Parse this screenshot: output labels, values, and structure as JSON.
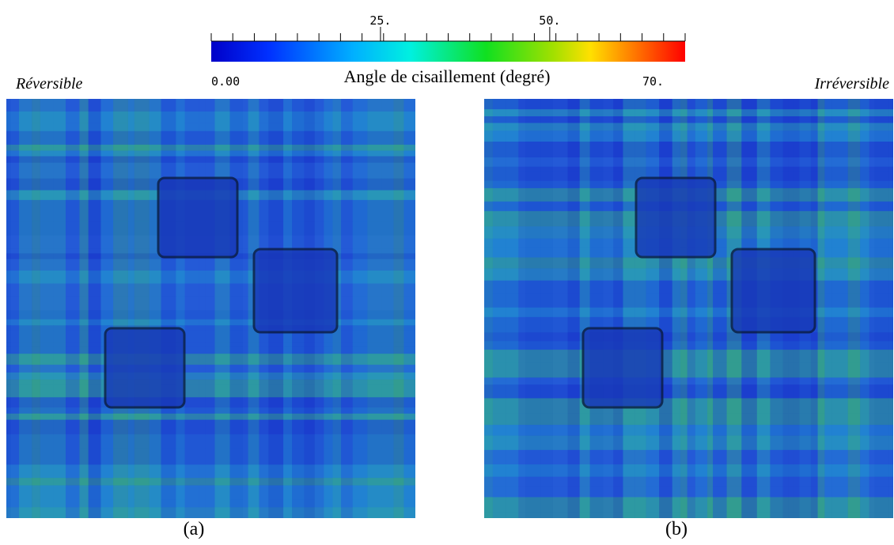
{
  "colorbar": {
    "label": "Angle de cisaillement (degré)",
    "range": [
      0,
      70
    ],
    "min_label": "0.00",
    "max_label": "70.",
    "ticks": [
      {
        "value": 25,
        "label": "25."
      },
      {
        "value": 50,
        "label": "50."
      }
    ]
  },
  "panels": [
    {
      "title": "Réversible",
      "caption": "(a)"
    },
    {
      "title": "Irréversible",
      "caption": "(b)"
    }
  ]
}
